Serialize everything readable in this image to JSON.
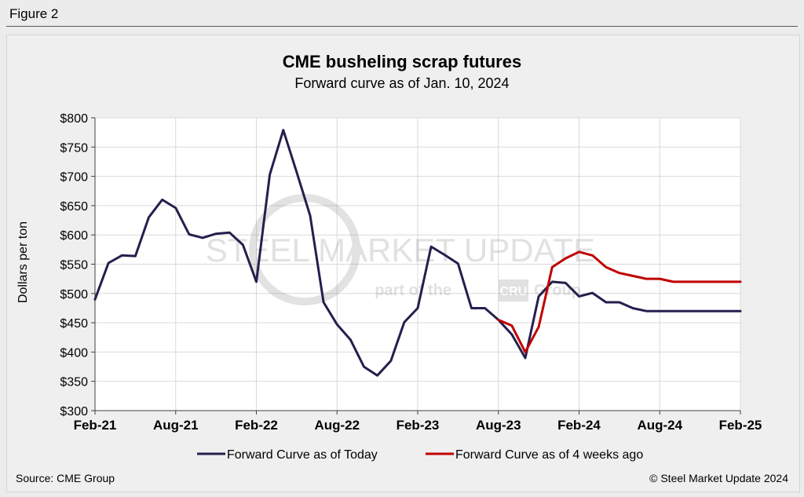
{
  "figure_label": "Figure 2",
  "source": "Source: CME Group",
  "copyright": "© Steel Market Update 2024",
  "watermark": {
    "title": "STEEL MARKET UPDATE",
    "subtitle_pre": "part of the",
    "subtitle_logo": "CRU",
    "subtitle_post": "Group"
  },
  "colors": {
    "today": "#241f4d",
    "weeks4": "#c00000",
    "grid": "#d9d9d9",
    "axis": "#404040"
  },
  "chart_data": {
    "type": "line",
    "title": "CME busheling scrap futures",
    "subtitle": "Forward curve as of Jan. 10, 2024",
    "xlabel": "",
    "ylabel": "Dollars per ton",
    "ylim": [
      300,
      800
    ],
    "y_ticks": [
      300,
      350,
      400,
      450,
      500,
      550,
      600,
      650,
      700,
      750,
      800
    ],
    "y_tick_labels": [
      "$300",
      "$350",
      "$400",
      "$450",
      "$500",
      "$550",
      "$600",
      "$650",
      "$700",
      "$750",
      "$800"
    ],
    "x_range_months": [
      0,
      48
    ],
    "x_ticks": [
      0,
      6,
      12,
      18,
      24,
      30,
      36,
      42,
      48
    ],
    "x_tick_labels": [
      "Feb-21",
      "Aug-21",
      "Feb-22",
      "Aug-22",
      "Feb-23",
      "Aug-23",
      "Feb-24",
      "Aug-24",
      "Feb-25"
    ],
    "grid": true,
    "legend_position": "bottom",
    "series": [
      {
        "name": "Forward Curve as of Today",
        "color": "#241f4d",
        "x": [
          0,
          1,
          2,
          3,
          4,
          5,
          6,
          7,
          8,
          9,
          10,
          11,
          12,
          13,
          14,
          15,
          16,
          17,
          18,
          19,
          20,
          21,
          22,
          23,
          24,
          25,
          26,
          27,
          28,
          29,
          30,
          31,
          32,
          33,
          34,
          35,
          36,
          37,
          38,
          39,
          40,
          41,
          42,
          43,
          44,
          45,
          46,
          47,
          48
        ],
        "values": [
          490,
          552,
          565,
          564,
          630,
          660,
          646,
          601,
          595,
          602,
          604,
          583,
          520,
          703,
          779,
          707,
          633,
          485,
          447,
          421,
          375,
          360,
          385,
          451,
          475,
          580,
          566,
          551,
          475,
          475,
          455,
          430,
          390,
          495,
          520,
          518,
          495,
          501,
          485,
          485,
          475,
          470,
          470,
          470,
          470,
          470,
          470,
          470,
          470
        ]
      },
      {
        "name": "Forward Curve as of 4 weeks ago",
        "color": "#c00000",
        "x": [
          30,
          31,
          32,
          33,
          34,
          35,
          36,
          37,
          38,
          39,
          40,
          41,
          42,
          43,
          44,
          45,
          46,
          47,
          48
        ],
        "values": [
          455,
          445,
          400,
          443,
          545,
          560,
          571,
          565,
          545,
          535,
          530,
          525,
          525,
          520,
          520,
          520,
          520,
          520,
          520
        ]
      }
    ]
  }
}
